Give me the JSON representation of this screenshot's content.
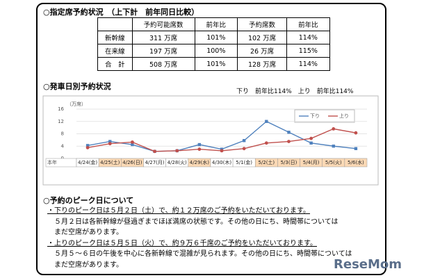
{
  "heading1": "○指定席予約状況　（上下計　前年同日比較）",
  "table": {
    "header": [
      "予約可能席数",
      "前年比",
      "予約席数",
      "前年比"
    ],
    "rows": [
      [
        "新幹線",
        "311 万席",
        "101%",
        "102 万席",
        "114%"
      ],
      [
        "在来線",
        "197 万席",
        "100%",
        "26 万席",
        "115%"
      ],
      [
        "合　計",
        "508 万席",
        "101%",
        "128 万席",
        "114%"
      ]
    ]
  },
  "heading2": "○発車日別予約状況",
  "chart_note": "下り　前年比114%　上り　前年比114%",
  "chart_data": {
    "type": "line",
    "y_label": "（万席）",
    "row_label": "本年",
    "categories": [
      "4/24(金)",
      "4/25(土)",
      "4/26(日)",
      "4/27(月)",
      "4/28(火)",
      "4/29(水)",
      "4/30(木)",
      "5/1(金)",
      "5/2(土)",
      "5/3(日)",
      "5/4(月)",
      "5/5(火)",
      "5/6(水)"
    ],
    "series": [
      {
        "name": "下り",
        "color": "#4f81bd",
        "values": [
          4.2,
          5.5,
          4.5,
          2.3,
          2.5,
          4.5,
          3.0,
          5.8,
          12.0,
          8.5,
          5.0,
          4.0,
          3.2
        ]
      },
      {
        "name": "上り",
        "color": "#c0504d",
        "values": [
          3.5,
          4.8,
          5.3,
          2.3,
          2.5,
          3.0,
          2.5,
          3.2,
          5.0,
          5.5,
          6.5,
          9.6,
          8.3
        ]
      }
    ],
    "ylim": [
      0,
      16
    ],
    "yticks": [
      0,
      4,
      8,
      12,
      16
    ],
    "grid": true
  },
  "heading3": "○予約のピーク日について",
  "paragraphs": [
    "・下りのピーク日は５月２日（土）で、約１２万席のご予約をいただいております。",
    "５月２日は各新幹線が昼過ぎまでほぼ満席の状態です。その他の日にち、時間帯については",
    "まだ空席があります。",
    "・上りのピーク日は５月５日（火）で、約９万６千席のご予約をいただいております。",
    "５月５～６日の午後を中心に各新幹線で混雑が見られます。その他の日にち、時間帯については",
    "まだ空席があります。"
  ],
  "logo": "ReseMom"
}
